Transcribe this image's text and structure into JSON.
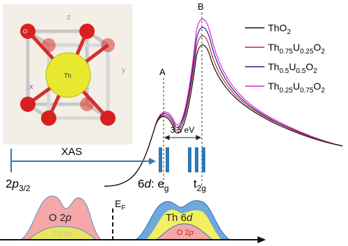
{
  "crystal": {
    "axes": [
      "z",
      "y",
      "x"
    ],
    "center": "Th",
    "corner": "O"
  },
  "legend": [
    [
      "ThO",
      "2"
    ],
    [
      "Th",
      "0.75",
      "U",
      "0.25",
      "O",
      "2"
    ],
    [
      "Th",
      "0.5",
      "U",
      "0.5",
      "O",
      "2"
    ],
    [
      "Th",
      "0.25",
      "U",
      "0.75",
      "O",
      "2"
    ]
  ],
  "peaks": {
    "a": "A",
    "b": "B",
    "splitting": "3.5 eV"
  },
  "transition": {
    "label": "XAS",
    "core": [
      "2",
      "p",
      "3/2"
    ],
    "eg": [
      "6",
      "d",
      ": e",
      "g"
    ],
    "t2g": [
      "t",
      "2g"
    ]
  },
  "dos": {
    "fermi": [
      "E",
      "F"
    ],
    "left_main": [
      "O 2",
      "p"
    ],
    "left_minor": [
      "Th 6",
      "d"
    ],
    "right_main": [
      "Th 6",
      "d"
    ],
    "right_minor": [
      "O 2",
      "p"
    ]
  }
}
